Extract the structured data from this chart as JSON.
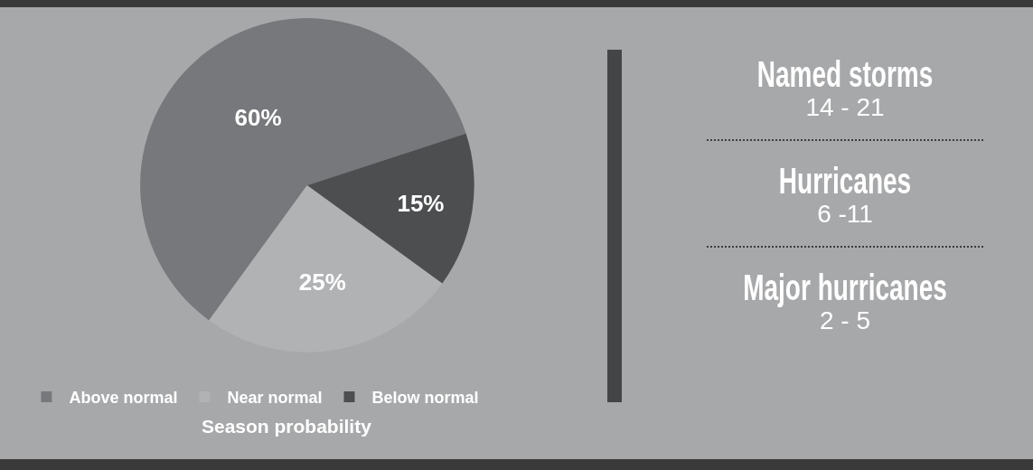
{
  "chart_data": [
    {
      "type": "pie",
      "categories": [
        "Above normal",
        "Near normal",
        "Below normal"
      ],
      "values": [
        60,
        25,
        15
      ],
      "colors": [
        "#77787b",
        "#b1b2b4",
        "#4d4e50"
      ],
      "value_labels": [
        "60%",
        "25%",
        "15%"
      ],
      "legend": "bottom",
      "annotations": [
        "Season probability"
      ]
    },
    {
      "type": "other",
      "annotations": [
        "Named storms",
        "14 - 21",
        "Hurricanes",
        "6 -11",
        "Major hurricanes",
        "2 - 5"
      ]
    }
  ]
}
